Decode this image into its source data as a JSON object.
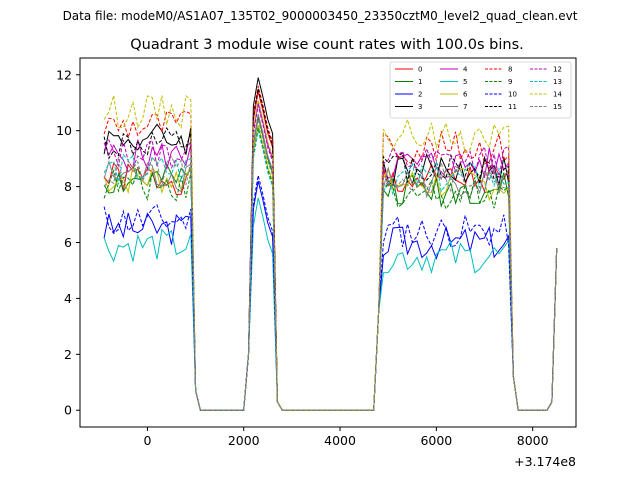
{
  "suptitle": "Data file: modeM0/AS1A07_135T02_9000003450_23350cztM0_level2_quad_clean.evt",
  "chart_data": {
    "type": "line",
    "title": "Quadrant 3 module wise count rates with 100.0s bins.",
    "xlabel": "",
    "ylabel": "",
    "x_offset_label": "+3.174e8",
    "xlim": [
      -1400,
      8900
    ],
    "ylim": [
      -0.6,
      12.6
    ],
    "xticks": [
      0,
      2000,
      4000,
      6000,
      8000
    ],
    "xtick_labels": [
      "0",
      "2000",
      "4000",
      "6000",
      "8000"
    ],
    "yticks": [
      0,
      2,
      4,
      6,
      8,
      10,
      12
    ],
    "ytick_labels": [
      "0",
      "2",
      "4",
      "6",
      "8",
      "10",
      "12"
    ],
    "grid": false,
    "legend_position": "top-right",
    "x": [
      -900,
      -800,
      -700,
      -600,
      -500,
      -400,
      -300,
      -200,
      -100,
      0,
      100,
      200,
      300,
      400,
      500,
      600,
      700,
      800,
      900,
      1000,
      1100,
      1200,
      1300,
      1400,
      1500,
      1600,
      1700,
      1800,
      1900,
      2000,
      2100,
      2200,
      2300,
      2400,
      2500,
      2600,
      2700,
      2800,
      2900,
      3000,
      3100,
      3200,
      3300,
      3400,
      3500,
      3600,
      3700,
      3800,
      3900,
      4000,
      4100,
      4200,
      4300,
      4400,
      4500,
      4600,
      4700,
      4800,
      4900,
      5000,
      5100,
      5200,
      5300,
      5400,
      5500,
      5600,
      5700,
      5800,
      5900,
      6000,
      6100,
      6200,
      6300,
      6400,
      6500,
      6600,
      6700,
      6800,
      6900,
      7000,
      7100,
      7200,
      7300,
      7400,
      7500,
      7600,
      7700,
      7800,
      7900,
      8000,
      8100,
      8200,
      8300,
      8400,
      8500
    ],
    "series": [
      {
        "name": "0",
        "color": "#ff0000",
        "dash": "solid",
        "level1": 8.3,
        "peak": 11.4,
        "level2": 8.2,
        "end": 5.8,
        "seed": 1
      },
      {
        "name": "1",
        "color": "#008000",
        "dash": "solid",
        "level1": 8.2,
        "peak": 10.5,
        "level2": 7.9,
        "end": 5.8,
        "seed": 2
      },
      {
        "name": "2",
        "color": "#0000ff",
        "dash": "solid",
        "level1": 6.5,
        "peak": 8.2,
        "level2": 6.0,
        "end": 5.8,
        "seed": 3
      },
      {
        "name": "3",
        "color": "#000000",
        "dash": "solid",
        "level1": 9.7,
        "peak": 11.9,
        "level2": 8.6,
        "end": 5.8,
        "seed": 4
      },
      {
        "name": "4",
        "color": "#bf00bf",
        "dash": "solid",
        "level1": 9.1,
        "peak": 11.0,
        "level2": 8.8,
        "end": 5.8,
        "seed": 5
      },
      {
        "name": "5",
        "color": "#00bfbf",
        "dash": "solid",
        "level1": 5.9,
        "peak": 7.6,
        "level2": 5.5,
        "end": 5.8,
        "seed": 6
      },
      {
        "name": "6",
        "color": "#bfbf00",
        "dash": "solid",
        "level1": 8.3,
        "peak": 10.2,
        "level2": 8.1,
        "end": 5.8,
        "seed": 7
      },
      {
        "name": "7",
        "color": "#808080",
        "dash": "solid",
        "level1": 8.4,
        "peak": 10.6,
        "level2": 8.2,
        "end": 5.8,
        "seed": 8
      },
      {
        "name": "8",
        "color": "#ff0000",
        "dash": "dashed",
        "level1": 10.2,
        "peak": 11.6,
        "level2": 9.4,
        "end": 5.8,
        "seed": 9
      },
      {
        "name": "9",
        "color": "#008000",
        "dash": "dashed",
        "level1": 8.1,
        "peak": 10.1,
        "level2": 7.8,
        "end": 5.8,
        "seed": 10
      },
      {
        "name": "10",
        "color": "#0000ff",
        "dash": "dashed",
        "level1": 6.8,
        "peak": 8.4,
        "level2": 6.4,
        "end": 5.8,
        "seed": 11
      },
      {
        "name": "11",
        "color": "#000000",
        "dash": "dashed",
        "level1": 9.5,
        "peak": 11.5,
        "level2": 8.7,
        "end": 5.8,
        "seed": 12
      },
      {
        "name": "12",
        "color": "#bf00bf",
        "dash": "dashed",
        "level1": 9.2,
        "peak": 10.9,
        "level2": 8.9,
        "end": 5.8,
        "seed": 13
      },
      {
        "name": "13",
        "color": "#00bfbf",
        "dash": "dashed",
        "level1": 8.6,
        "peak": 10.0,
        "level2": 8.3,
        "end": 5.8,
        "seed": 14
      },
      {
        "name": "14",
        "color": "#bfbf00",
        "dash": "dashed",
        "level1": 10.7,
        "peak": 11.1,
        "level2": 9.8,
        "end": 5.8,
        "seed": 15
      },
      {
        "name": "15",
        "color": "#808080",
        "dash": "dashed",
        "level1": 8.5,
        "peak": 10.4,
        "level2": 8.3,
        "end": 5.8,
        "seed": 16
      }
    ]
  }
}
